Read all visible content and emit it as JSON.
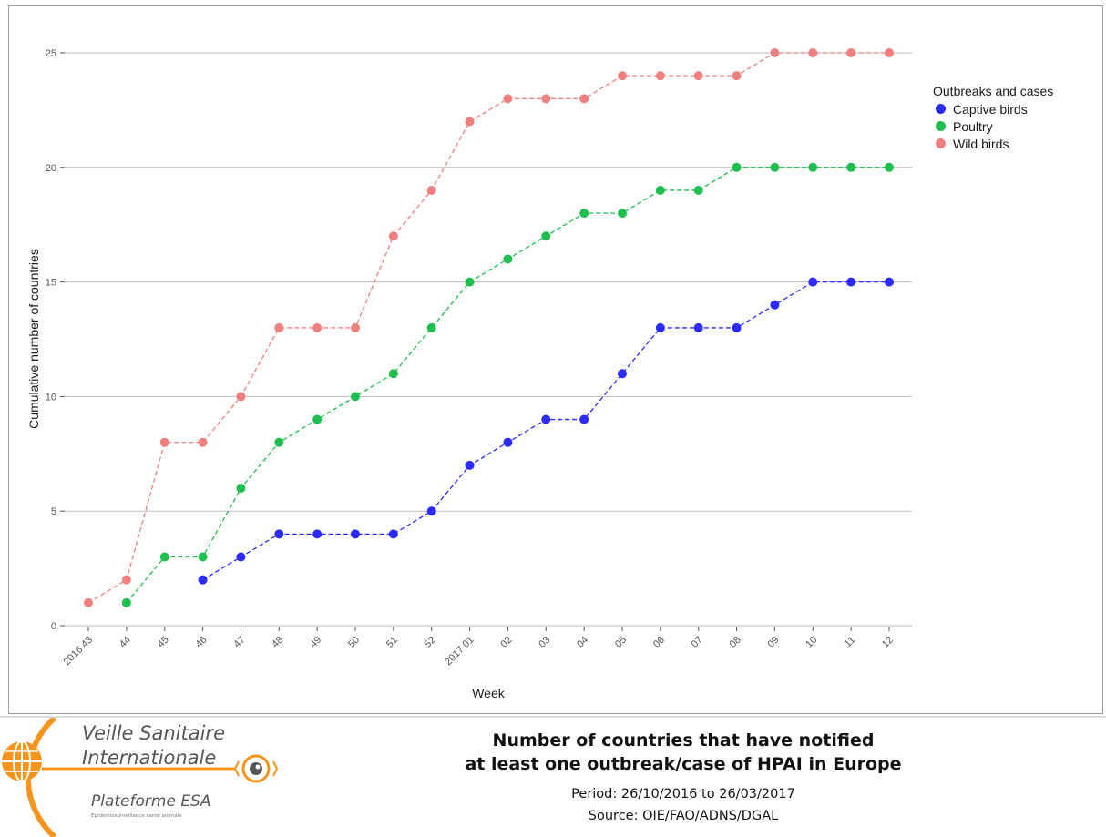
{
  "chart_data": {
    "type": "line",
    "xlabel": "Week",
    "ylabel": "Cumulative number of countries",
    "categories": [
      "2016 43",
      "44",
      "45",
      "46",
      "47",
      "48",
      "49",
      "50",
      "51",
      "52",
      "2017 01",
      "02",
      "03",
      "04",
      "05",
      "06",
      "07",
      "08",
      "09",
      "10",
      "11",
      "12"
    ],
    "yticks": [
      0,
      5,
      10,
      15,
      20,
      25
    ],
    "ylim": [
      0,
      26
    ],
    "grid": "horizontal major",
    "line_style": "dashed with points",
    "legend": {
      "title": "Outbreaks and cases",
      "position": "right",
      "entries": [
        "Captive birds",
        "Poultry",
        "Wild birds"
      ]
    },
    "series": [
      {
        "name": "Captive birds",
        "color": "#2b2bff",
        "values": [
          null,
          null,
          null,
          2,
          3,
          4,
          4,
          4,
          4,
          5,
          7,
          8,
          9,
          9,
          11,
          13,
          13,
          13,
          14,
          15,
          15,
          15
        ]
      },
      {
        "name": "Poultry",
        "color": "#1fbf4f",
        "values": [
          null,
          1,
          3,
          3,
          6,
          8,
          9,
          10,
          11,
          13,
          15,
          16,
          17,
          18,
          18,
          19,
          19,
          20,
          20,
          20,
          20,
          20
        ]
      },
      {
        "name": "Wild birds",
        "color": "#f08080",
        "values": [
          1,
          2,
          8,
          8,
          10,
          13,
          13,
          13,
          17,
          19,
          22,
          23,
          23,
          23,
          24,
          24,
          24,
          24,
          25,
          25,
          25,
          25
        ]
      }
    ]
  },
  "footer": {
    "logo_line1": "Veille Sanitaire",
    "logo_line2": "Internationale",
    "logo_line3": "Plateforme ESA",
    "logo_line4": "Epidémiosurveillance santé animale",
    "title_line1": "Number of countries that have notified",
    "title_line2": "at least one outbreak/case of HPAI in Europe",
    "period": "Period: 26/10/2016 to 26/03/2017",
    "source": "Source: OIE/FAO/ADNS/DGAL"
  },
  "colors": {
    "logo_orange": "#f7941d",
    "logo_text": "#555555",
    "grid": "#bdbdbd"
  }
}
